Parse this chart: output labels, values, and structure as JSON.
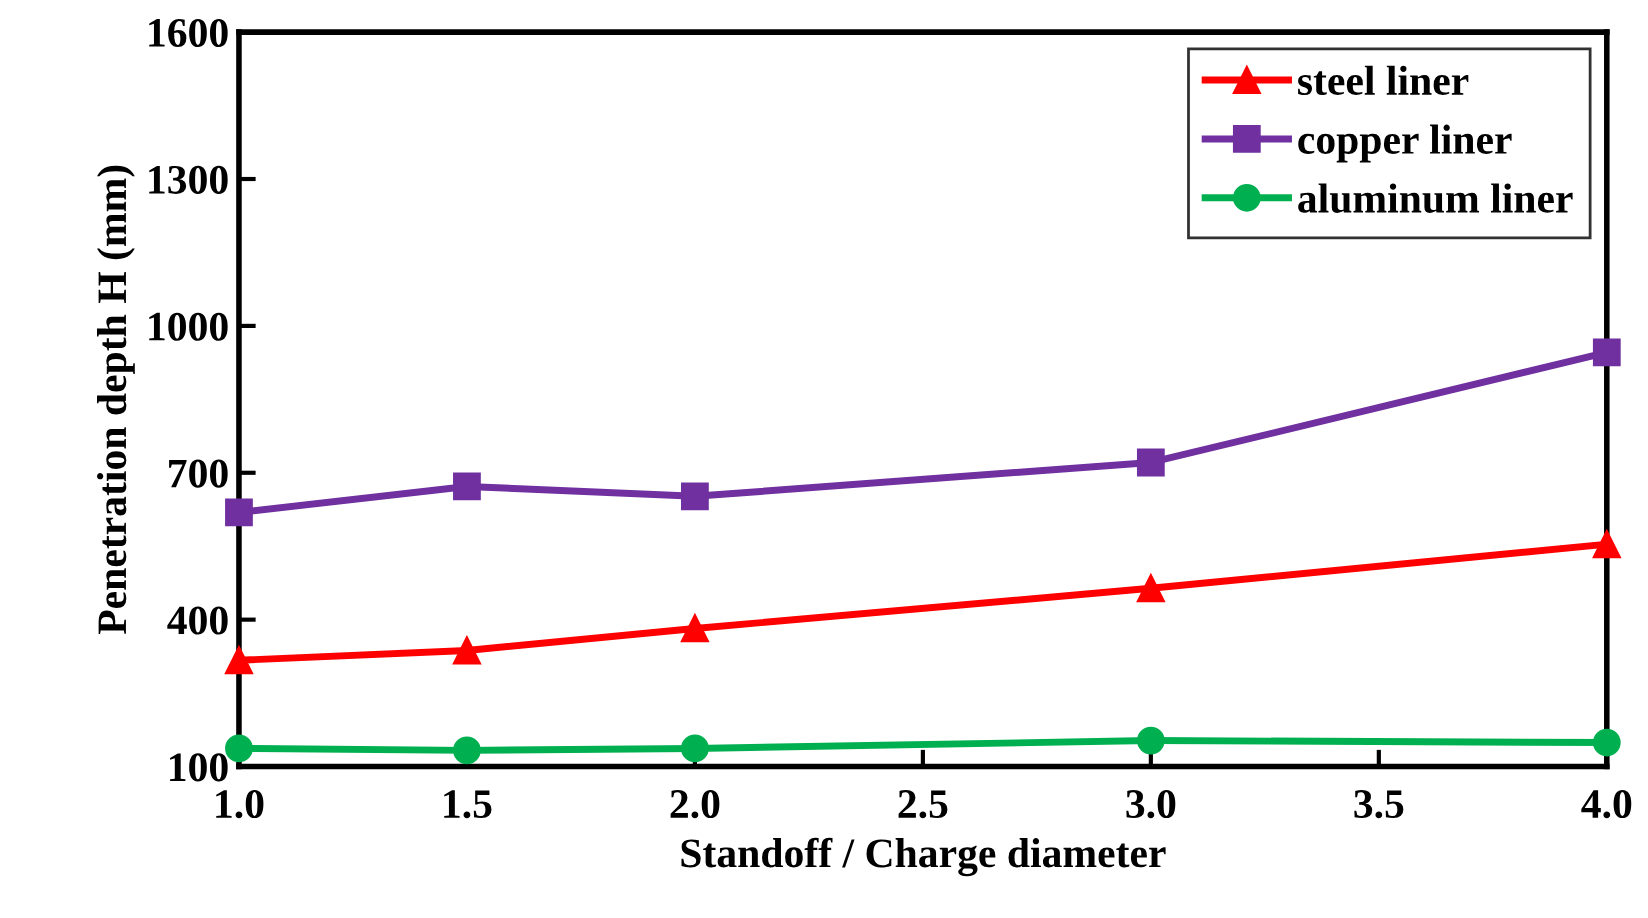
{
  "chart_data": {
    "type": "line",
    "xlabel": "Standoff / Charge diameter",
    "ylabel": "Penetration depth H (mm)",
    "x": [
      1.0,
      1.5,
      2.0,
      3.0,
      4.0
    ],
    "series": [
      {
        "name": "steel liner",
        "color": "#ff0000",
        "marker": "triangle",
        "values": [
          317,
          337,
          382,
          464,
          554
        ]
      },
      {
        "name": "copper liner",
        "color": "#7030a0",
        "marker": "square",
        "values": [
          619,
          672,
          652,
          721,
          946
        ]
      },
      {
        "name": "aluminum liner",
        "color": "#00b050",
        "marker": "circle",
        "values": [
          137,
          133,
          137,
          153,
          149
        ]
      }
    ],
    "xlim": [
      1.0,
      4.0
    ],
    "xticks": [
      {
        "value": 1.0,
        "label": "1.0"
      },
      {
        "value": 1.5,
        "label": "1.5"
      },
      {
        "value": 2.0,
        "label": "2.0"
      },
      {
        "value": 2.5,
        "label": "2.5"
      },
      {
        "value": 3.0,
        "label": "3.0"
      },
      {
        "value": 3.5,
        "label": "3.5"
      },
      {
        "value": 4.0,
        "label": "4.0"
      }
    ],
    "ylim": [
      100,
      1600
    ],
    "yticks": [
      100,
      400,
      700,
      1000,
      1300,
      1600
    ],
    "grid": false,
    "legend": "top right"
  }
}
